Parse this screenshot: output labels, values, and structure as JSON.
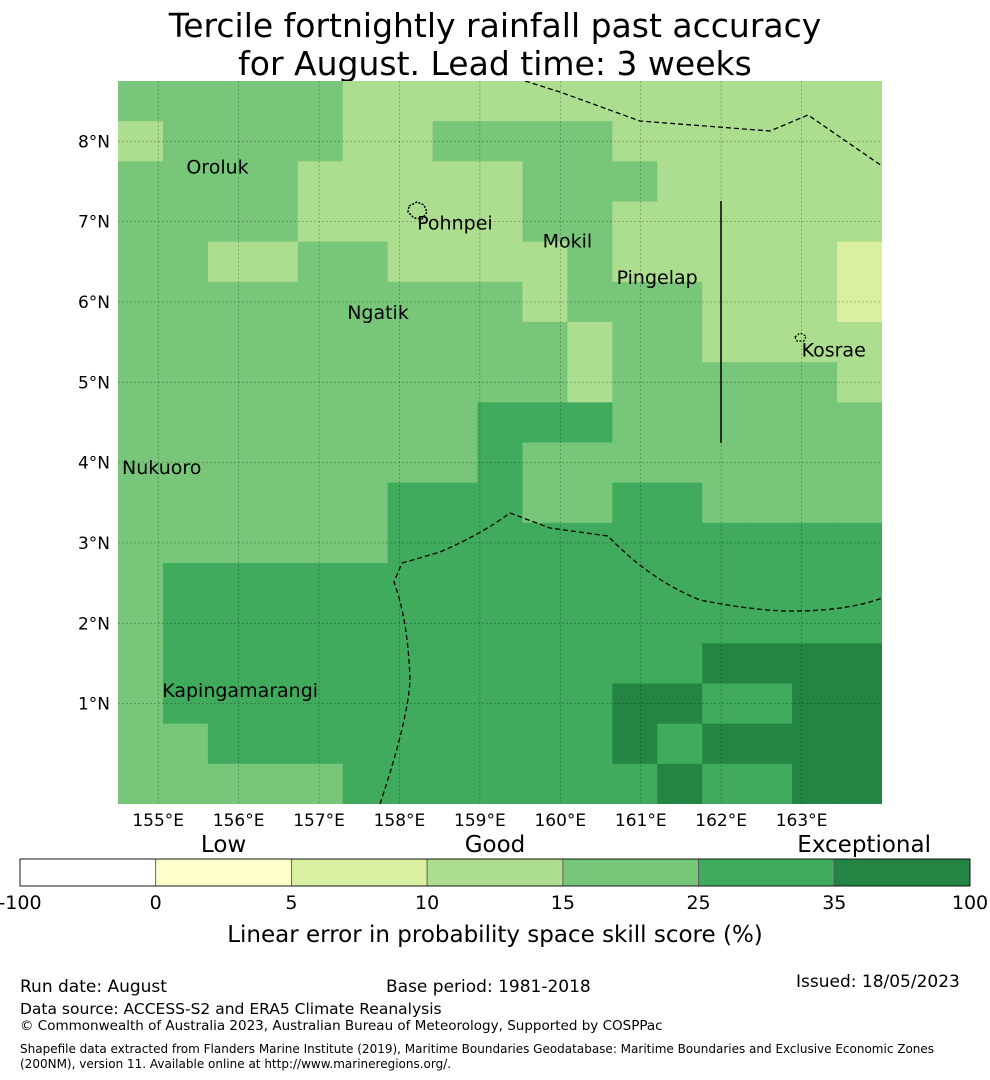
{
  "title": {
    "line1": "Tercile fortnightly rainfall past accuracy",
    "line2": "for August. Lead time: 3 weeks"
  },
  "axes": {
    "lon_ticks": [
      {
        "value": 155,
        "label": "155°E"
      },
      {
        "value": 156,
        "label": "156°E"
      },
      {
        "value": 157,
        "label": "157°E"
      },
      {
        "value": 158,
        "label": "158°E"
      },
      {
        "value": 159,
        "label": "159°E"
      },
      {
        "value": 160,
        "label": "160°E"
      },
      {
        "value": 161,
        "label": "161°E"
      },
      {
        "value": 162,
        "label": "162°E"
      },
      {
        "value": 163,
        "label": "163°E"
      }
    ],
    "lat_ticks": [
      {
        "value": 8,
        "label": "8°N"
      },
      {
        "value": 7,
        "label": "7°N"
      },
      {
        "value": 6,
        "label": "6°N"
      },
      {
        "value": 5,
        "label": "5°N"
      },
      {
        "value": 4,
        "label": "4°N"
      },
      {
        "value": 3,
        "label": "3°N"
      },
      {
        "value": 2,
        "label": "2°N"
      },
      {
        "value": 1,
        "label": "1°N"
      }
    ],
    "lon_range": [
      154.5,
      164.0
    ],
    "lat_range": [
      -0.25,
      8.75
    ]
  },
  "places": [
    {
      "name": "Oroluk",
      "lon": 155.35,
      "lat": 7.6
    },
    {
      "name": "Pohnpei",
      "lon": 158.22,
      "lat": 6.9
    },
    {
      "name": "Mokil",
      "lon": 159.78,
      "lat": 6.68
    },
    {
      "name": "Pingelap",
      "lon": 160.7,
      "lat": 6.22
    },
    {
      "name": "Ngatik",
      "lon": 157.35,
      "lat": 5.79
    },
    {
      "name": "Kosrae",
      "lon": 163.0,
      "lat": 5.32
    },
    {
      "name": "Nukuoro",
      "lon": 154.55,
      "lat": 3.86
    },
    {
      "name": "Kapingamarangi",
      "lon": 155.05,
      "lat": 1.08
    }
  ],
  "skill_grid": {
    "description_units": "Linear error in probability space skill score category index (0:<0,1:0-5,2:5-10,3:10-15,4:15-25,5:25-35,6:35-100)",
    "rows_lat_top_to_bottom": [
      [
        4,
        4,
        4,
        4,
        4,
        3,
        3,
        3,
        3,
        3,
        3,
        3,
        3,
        3,
        3,
        3,
        3
      ],
      [
        3,
        4,
        4,
        4,
        4,
        3,
        3,
        4,
        4,
        4,
        4,
        3,
        3,
        3,
        3,
        3,
        3
      ],
      [
        4,
        4,
        4,
        4,
        3,
        3,
        3,
        3,
        3,
        4,
        4,
        4,
        3,
        3,
        3,
        3,
        3
      ],
      [
        4,
        4,
        4,
        4,
        3,
        3,
        3,
        3,
        3,
        4,
        4,
        3,
        3,
        3,
        3,
        3,
        3
      ],
      [
        4,
        4,
        3,
        3,
        4,
        4,
        3,
        3,
        3,
        3,
        4,
        3,
        3,
        3,
        3,
        3,
        2
      ],
      [
        4,
        4,
        4,
        4,
        4,
        4,
        4,
        4,
        4,
        3,
        4,
        4,
        4,
        3,
        3,
        3,
        2
      ],
      [
        4,
        4,
        4,
        4,
        4,
        4,
        4,
        4,
        4,
        4,
        3,
        4,
        4,
        3,
        3,
        3,
        3
      ],
      [
        4,
        4,
        4,
        4,
        4,
        4,
        4,
        4,
        4,
        4,
        3,
        4,
        4,
        4,
        4,
        4,
        3
      ],
      [
        4,
        4,
        4,
        4,
        4,
        4,
        4,
        4,
        5,
        5,
        5,
        4,
        4,
        4,
        4,
        4,
        4
      ],
      [
        4,
        4,
        4,
        4,
        4,
        4,
        4,
        4,
        5,
        4,
        4,
        4,
        4,
        4,
        4,
        4,
        4
      ],
      [
        4,
        4,
        4,
        4,
        4,
        4,
        5,
        5,
        5,
        4,
        4,
        5,
        5,
        4,
        4,
        4,
        4
      ],
      [
        4,
        4,
        4,
        4,
        4,
        4,
        5,
        5,
        5,
        5,
        5,
        5,
        5,
        5,
        5,
        5,
        5
      ],
      [
        4,
        5,
        5,
        5,
        5,
        5,
        5,
        5,
        5,
        5,
        5,
        5,
        5,
        5,
        5,
        5,
        5
      ],
      [
        4,
        5,
        5,
        5,
        5,
        5,
        5,
        5,
        5,
        5,
        5,
        5,
        5,
        5,
        5,
        5,
        5
      ],
      [
        4,
        5,
        5,
        5,
        5,
        5,
        5,
        5,
        5,
        5,
        5,
        5,
        5,
        6,
        6,
        6,
        6
      ],
      [
        4,
        5,
        5,
        5,
        5,
        5,
        5,
        5,
        5,
        5,
        5,
        6,
        6,
        5,
        5,
        6,
        6
      ],
      [
        4,
        4,
        5,
        5,
        5,
        5,
        5,
        5,
        5,
        5,
        5,
        6,
        5,
        6,
        6,
        6,
        6
      ],
      [
        4,
        4,
        4,
        4,
        4,
        5,
        5,
        5,
        5,
        5,
        5,
        5,
        6,
        5,
        5,
        6,
        6
      ]
    ]
  },
  "colorbar": {
    "categories": [
      "Low",
      "Good",
      "Exceptional"
    ],
    "tick_labels": [
      "-100",
      "0",
      "5",
      "10",
      "15",
      "25",
      "35",
      "100"
    ],
    "colors": [
      "#ffffff",
      "#ffffcc",
      "#d9f0a3",
      "#addd8e",
      "#78c679",
      "#41ab5d",
      "#238443"
    ],
    "label": "Linear error in probability space skill score (%)"
  },
  "footer": {
    "run_date": "Run date: August",
    "base_period": "Base period: 1981-2018",
    "issued": "Issued: 18/05/2023",
    "data_source": "Data source: ACCESS-S2 and ERA5 Climate Reanalysis",
    "copyright": "© Commonwealth of Australia 2023, Australian Bureau of Meteorology, Supported by COSPPac",
    "shapefile": "Shapefile data extracted from Flanders Marine Institute (2019), Maritime Boundaries Geodatabase: Maritime Boundaries and Exclusive Economic Zones (200NM), version 11. Available online at http://www.marineregions.org/."
  }
}
